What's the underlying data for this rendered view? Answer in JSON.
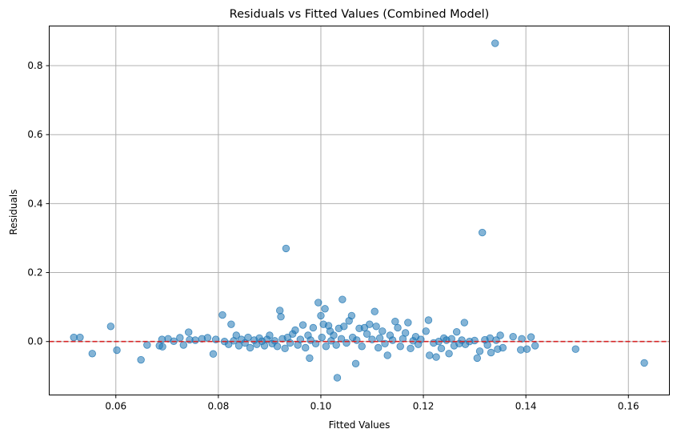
{
  "chart_data": {
    "type": "scatter",
    "title": "Residuals vs Fitted Values (Combined Model)",
    "xlabel": "Fitted Values",
    "ylabel": "Residuals",
    "xlim": [
      0.047,
      0.168
    ],
    "ylim": [
      -0.155,
      0.915
    ],
    "xticks": [
      0.06,
      0.08,
      0.1,
      0.12,
      0.14,
      0.16
    ],
    "xtick_labels": [
      "0.06",
      "0.08",
      "0.10",
      "0.12",
      "0.14",
      "0.16"
    ],
    "yticks": [
      0.0,
      0.2,
      0.4,
      0.6,
      0.8
    ],
    "ytick_labels": [
      "0.0",
      "0.2",
      "0.4",
      "0.6",
      "0.8"
    ],
    "grid": true,
    "reference_line": {
      "y": 0,
      "style": "dashed",
      "color": "#d62728"
    },
    "point_color": "#1f77b4",
    "point_alpha": 0.55,
    "series": [
      {
        "points": [
          [
            0.0518,
            0.012
          ],
          [
            0.053,
            0.012
          ],
          [
            0.0554,
            -0.035
          ],
          [
            0.059,
            0.044
          ],
          [
            0.0602,
            -0.025
          ],
          [
            0.0649,
            -0.053
          ],
          [
            0.0661,
            -0.01
          ],
          [
            0.0685,
            -0.012
          ],
          [
            0.069,
            0.006
          ],
          [
            0.0691,
            -0.015
          ],
          [
            0.0702,
            0.008
          ],
          [
            0.0713,
            0.001
          ],
          [
            0.0725,
            0.011
          ],
          [
            0.0732,
            -0.01
          ],
          [
            0.0742,
            0.027
          ],
          [
            0.0744,
            0.005
          ],
          [
            0.0755,
            0.004
          ],
          [
            0.0768,
            0.008
          ],
          [
            0.0779,
            0.011
          ],
          [
            0.079,
            -0.036
          ],
          [
            0.0795,
            0.006
          ],
          [
            0.0808,
            0.077
          ],
          [
            0.0812,
            0.0
          ],
          [
            0.082,
            -0.008
          ],
          [
            0.0825,
            0.05
          ],
          [
            0.083,
            0.002
          ],
          [
            0.0835,
            0.018
          ],
          [
            0.084,
            -0.012
          ],
          [
            0.0845,
            0.006
          ],
          [
            0.0852,
            -0.004
          ],
          [
            0.0858,
            0.012
          ],
          [
            0.0862,
            -0.018
          ],
          [
            0.087,
            0.004
          ],
          [
            0.0875,
            -0.008
          ],
          [
            0.088,
            0.01
          ],
          [
            0.0885,
            0.001
          ],
          [
            0.089,
            -0.012
          ],
          [
            0.0895,
            0.006
          ],
          [
            0.09,
            0.018
          ],
          [
            0.0905,
            -0.006
          ],
          [
            0.091,
            0.002
          ],
          [
            0.0915,
            -0.014
          ],
          [
            0.092,
            0.09
          ],
          [
            0.0922,
            0.072
          ],
          [
            0.0925,
            0.008
          ],
          [
            0.093,
            -0.02
          ],
          [
            0.0932,
            0.27
          ],
          [
            0.0935,
            0.012
          ],
          [
            0.094,
            -0.004
          ],
          [
            0.0945,
            0.022
          ],
          [
            0.095,
            0.033
          ],
          [
            0.0955,
            -0.01
          ],
          [
            0.096,
            0.006
          ],
          [
            0.0965,
            0.048
          ],
          [
            0.097,
            -0.018
          ],
          [
            0.0975,
            0.018
          ],
          [
            0.0978,
            -0.048
          ],
          [
            0.098,
            0.004
          ],
          [
            0.0985,
            0.04
          ],
          [
            0.099,
            -0.006
          ],
          [
            0.0995,
            0.113
          ],
          [
            0.1,
            0.075
          ],
          [
            0.1002,
            0.012
          ],
          [
            0.1005,
            0.05
          ],
          [
            0.1008,
            0.095
          ],
          [
            0.101,
            -0.014
          ],
          [
            0.1015,
            0.046
          ],
          [
            0.1018,
            0.03
          ],
          [
            0.102,
            0.002
          ],
          [
            0.1025,
            0.018
          ],
          [
            0.103,
            -0.01
          ],
          [
            0.1032,
            -0.105
          ],
          [
            0.1035,
            0.038
          ],
          [
            0.104,
            0.008
          ],
          [
            0.1042,
            0.122
          ],
          [
            0.1045,
            0.044
          ],
          [
            0.105,
            -0.004
          ],
          [
            0.1055,
            0.06
          ],
          [
            0.106,
            0.075
          ],
          [
            0.1062,
            0.012
          ],
          [
            0.1068,
            -0.064
          ],
          [
            0.107,
            0.004
          ],
          [
            0.1075,
            0.038
          ],
          [
            0.108,
            -0.014
          ],
          [
            0.1085,
            0.04
          ],
          [
            0.109,
            0.022
          ],
          [
            0.1095,
            0.05
          ],
          [
            0.11,
            0.006
          ],
          [
            0.1105,
            0.087
          ],
          [
            0.1108,
            0.044
          ],
          [
            0.1112,
            -0.018
          ],
          [
            0.1115,
            0.01
          ],
          [
            0.112,
            0.03
          ],
          [
            0.1125,
            -0.006
          ],
          [
            0.113,
            -0.04
          ],
          [
            0.1135,
            0.018
          ],
          [
            0.114,
            0.004
          ],
          [
            0.1145,
            0.058
          ],
          [
            0.115,
            0.04
          ],
          [
            0.1155,
            -0.014
          ],
          [
            0.116,
            0.008
          ],
          [
            0.1165,
            0.025
          ],
          [
            0.117,
            0.055
          ],
          [
            0.1175,
            -0.02
          ],
          [
            0.118,
            0.002
          ],
          [
            0.1185,
            0.014
          ],
          [
            0.119,
            -0.008
          ],
          [
            0.1195,
            0.006
          ],
          [
            0.1205,
            0.03
          ],
          [
            0.121,
            0.062
          ],
          [
            0.1212,
            -0.04
          ],
          [
            0.122,
            -0.004
          ],
          [
            0.1225,
            -0.045
          ],
          [
            0.123,
            0.0
          ],
          [
            0.1235,
            -0.02
          ],
          [
            0.124,
            0.01
          ],
          [
            0.1245,
            0.004
          ],
          [
            0.125,
            -0.035
          ],
          [
            0.1255,
            0.008
          ],
          [
            0.126,
            -0.012
          ],
          [
            0.1265,
            0.028
          ],
          [
            0.127,
            -0.006
          ],
          [
            0.1275,
            0.004
          ],
          [
            0.128,
            0.055
          ],
          [
            0.1282,
            -0.008
          ],
          [
            0.129,
            0.0
          ],
          [
            0.13,
            0.003
          ],
          [
            0.1305,
            -0.048
          ],
          [
            0.131,
            -0.028
          ],
          [
            0.1315,
            0.316
          ],
          [
            0.132,
            0.005
          ],
          [
            0.1325,
            -0.01
          ],
          [
            0.133,
            0.01
          ],
          [
            0.1332,
            -0.032
          ],
          [
            0.134,
            0.865
          ],
          [
            0.1342,
            0.004
          ],
          [
            0.1345,
            -0.022
          ],
          [
            0.135,
            0.018
          ],
          [
            0.1355,
            -0.018
          ],
          [
            0.1375,
            0.014
          ],
          [
            0.139,
            -0.024
          ],
          [
            0.1392,
            0.008
          ],
          [
            0.1402,
            -0.022
          ],
          [
            0.141,
            0.013
          ],
          [
            0.1418,
            -0.012
          ],
          [
            0.1497,
            -0.022
          ],
          [
            0.1631,
            -0.062
          ]
        ]
      }
    ]
  }
}
